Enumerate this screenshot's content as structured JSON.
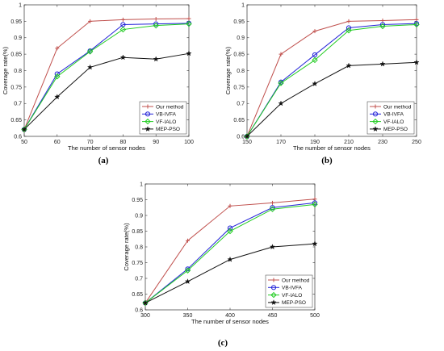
{
  "colors": {
    "our_method": "#c0504d",
    "vb_ivfa": "#2323d8",
    "vf_ialo": "#22cc22",
    "mep_pso": "#111111"
  },
  "chart_data": [
    {
      "type": "line",
      "caption": "(a)",
      "x": [
        50,
        60,
        70,
        80,
        90,
        100
      ],
      "xlabel": "The number of sensor nodes",
      "ylabel": "Coverage rate(%)",
      "xlim": [
        50,
        100
      ],
      "ylim": [
        0.6,
        1.0
      ],
      "xticks": [
        50,
        60,
        70,
        80,
        90,
        100
      ],
      "yticks": [
        0.6,
        0.65,
        0.7,
        0.75,
        0.8,
        0.85,
        0.9,
        0.95,
        1
      ],
      "legend": "bottom-right",
      "grid": false,
      "series": [
        {
          "name": "Our method",
          "values": [
            0.621,
            0.868,
            0.95,
            0.955,
            0.957,
            0.958
          ]
        },
        {
          "name": "VB-IVFA",
          "values": [
            0.621,
            0.79,
            0.86,
            0.94,
            0.942,
            0.944
          ]
        },
        {
          "name": "VF-IALO",
          "values": [
            0.621,
            0.782,
            0.858,
            0.925,
            0.937,
            0.942
          ]
        },
        {
          "name": "MEP-PSO",
          "values": [
            0.621,
            0.72,
            0.81,
            0.84,
            0.835,
            0.852
          ]
        }
      ]
    },
    {
      "type": "line",
      "caption": "(b)",
      "x": [
        150,
        170,
        190,
        210,
        230,
        250
      ],
      "xlabel": "The number of sensor nodes",
      "ylabel": "Coverage rate(%)",
      "xlim": [
        150,
        250
      ],
      "ylim": [
        0.6,
        1.0
      ],
      "xticks": [
        150,
        170,
        190,
        210,
        230,
        250
      ],
      "yticks": [
        0.6,
        0.65,
        0.7,
        0.75,
        0.8,
        0.85,
        0.9,
        0.95,
        1
      ],
      "legend": "bottom-right",
      "grid": false,
      "series": [
        {
          "name": "Our method",
          "values": [
            0.6,
            0.85,
            0.92,
            0.95,
            0.952,
            0.955
          ]
        },
        {
          "name": "VB-IVFA",
          "values": [
            0.6,
            0.765,
            0.848,
            0.93,
            0.94,
            0.943
          ]
        },
        {
          "name": "VF-IALO",
          "values": [
            0.6,
            0.762,
            0.832,
            0.922,
            0.935,
            0.94
          ]
        },
        {
          "name": "MEP-PSO",
          "values": [
            0.6,
            0.7,
            0.76,
            0.815,
            0.82,
            0.825
          ]
        }
      ]
    },
    {
      "type": "line",
      "caption": "(c)",
      "x": [
        300,
        350,
        400,
        450,
        500
      ],
      "xlabel": "The number of sensor nodes",
      "ylabel": "Coverage rate(%)",
      "xlim": [
        300,
        500
      ],
      "ylim": [
        0.6,
        1.0
      ],
      "xticks": [
        300,
        350,
        400,
        450,
        500
      ],
      "yticks": [
        0.6,
        0.65,
        0.7,
        0.75,
        0.8,
        0.85,
        0.9,
        0.95,
        1
      ],
      "legend": "bottom-right",
      "grid": false,
      "series": [
        {
          "name": "Our method",
          "values": [
            0.622,
            0.82,
            0.93,
            0.94,
            0.952
          ]
        },
        {
          "name": "VB-IVFA",
          "values": [
            0.622,
            0.73,
            0.86,
            0.925,
            0.94
          ]
        },
        {
          "name": "VF-IALO",
          "values": [
            0.622,
            0.725,
            0.85,
            0.92,
            0.935
          ]
        },
        {
          "name": "MEP-PSO",
          "values": [
            0.622,
            0.69,
            0.76,
            0.8,
            0.81
          ]
        }
      ]
    }
  ]
}
